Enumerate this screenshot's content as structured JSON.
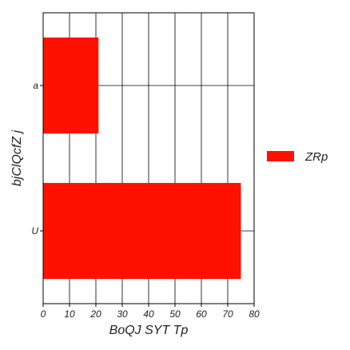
{
  "chart_data": {
    "type": "bar",
    "orientation": "horizontal",
    "categories": [
      "a",
      "U"
    ],
    "series": [
      {
        "name": "ZRp",
        "values": [
          21,
          75
        ]
      }
    ],
    "xlabel": "BoQJ SYT Tp",
    "ylabel": "bjClQcfZ j",
    "xlim": [
      0,
      80
    ],
    "xticks": [
      0,
      10,
      20,
      30,
      40,
      50,
      60,
      70,
      80
    ],
    "grid": true,
    "legend_position": "right",
    "colors": {
      "bar": "#ff1100",
      "grid": "#000000",
      "frame": "#000000"
    }
  }
}
